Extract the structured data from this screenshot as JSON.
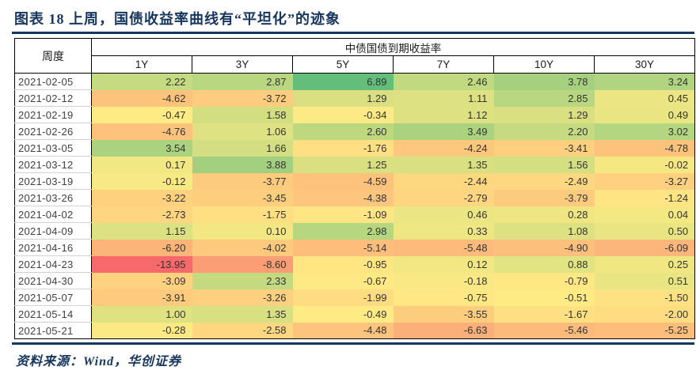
{
  "accent_color": "#17365D",
  "source": "资料来源：Wind，华创证券",
  "chart_data": {
    "type": "heatmap",
    "title": "图表 18  上周，国债收益率曲线有“平坦化”的迹象",
    "row_header_label": "周度",
    "group_header": "中债国债到期收益率",
    "columns": [
      "1Y",
      "3Y",
      "5Y",
      "7Y",
      "10Y",
      "30Y"
    ],
    "rows": [
      {
        "date": "2021-02-05",
        "values": [
          2.22,
          2.87,
          6.89,
          2.46,
          3.78,
          3.24
        ]
      },
      {
        "date": "2021-02-12",
        "values": [
          -4.62,
          -3.72,
          1.29,
          1.11,
          2.85,
          0.45
        ]
      },
      {
        "date": "2021-02-19",
        "values": [
          -0.47,
          1.58,
          -0.34,
          1.12,
          1.29,
          0.49
        ]
      },
      {
        "date": "2021-02-26",
        "values": [
          -4.76,
          1.06,
          2.6,
          3.49,
          2.2,
          3.02
        ]
      },
      {
        "date": "2021-03-05",
        "values": [
          3.54,
          1.66,
          -1.76,
          -4.24,
          -3.41,
          -4.78
        ]
      },
      {
        "date": "2021-03-12",
        "values": [
          0.17,
          3.88,
          1.25,
          1.35,
          1.56,
          -0.02
        ]
      },
      {
        "date": "2021-03-19",
        "values": [
          -0.12,
          -3.77,
          -4.59,
          -2.44,
          -2.49,
          -3.27
        ]
      },
      {
        "date": "2021-03-26",
        "values": [
          -3.22,
          -3.45,
          -4.38,
          -2.79,
          -3.79,
          -1.24
        ]
      },
      {
        "date": "2021-04-02",
        "values": [
          -2.73,
          -1.75,
          -1.09,
          0.46,
          0.28,
          0.04
        ]
      },
      {
        "date": "2021-04-09",
        "values": [
          1.15,
          0.1,
          2.98,
          0.33,
          1.08,
          0.5
        ]
      },
      {
        "date": "2021-04-16",
        "values": [
          -6.2,
          -4.02,
          -5.14,
          -5.48,
          -4.9,
          -6.09
        ]
      },
      {
        "date": "2021-04-23",
        "values": [
          -13.95,
          -8.6,
          -0.95,
          0.12,
          0.88,
          0.25
        ]
      },
      {
        "date": "2021-04-30",
        "values": [
          -3.09,
          2.33,
          -0.67,
          -0.18,
          -0.79,
          0.51
        ]
      },
      {
        "date": "2021-05-07",
        "values": [
          -3.91,
          -3.26,
          -1.99,
          -0.75,
          -0.51,
          -1.5
        ]
      },
      {
        "date": "2021-05-14",
        "values": [
          1.0,
          1.35,
          -0.49,
          -3.55,
          -1.67,
          -2.0
        ]
      },
      {
        "date": "2021-05-21",
        "values": [
          -0.28,
          -2.58,
          -4.48,
          -6.63,
          -5.46,
          -5.25
        ]
      }
    ],
    "value_range": [
      -13.95,
      6.89
    ],
    "colorscale": {
      "min_color": "#F8696B",
      "mid_color": "#FFEB84",
      "max_color": "#63BE7B",
      "midpoint": "median"
    },
    "value_format": "2-decimals"
  }
}
